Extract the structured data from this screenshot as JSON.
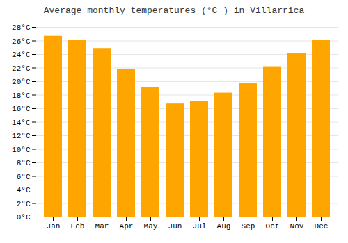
{
  "chart_data": {
    "type": "bar",
    "title": "Average monthly temperatures (°C ) in Villarrica",
    "categories": [
      "Jan",
      "Feb",
      "Mar",
      "Apr",
      "May",
      "Jun",
      "Jul",
      "Aug",
      "Sep",
      "Oct",
      "Nov",
      "Dec"
    ],
    "values": [
      26.7,
      26.1,
      24.9,
      21.8,
      19.1,
      16.7,
      17.1,
      18.3,
      19.7,
      22.2,
      24.1,
      26.1
    ],
    "color": "#FFA500",
    "ylim": [
      0,
      28
    ],
    "yticks": [
      {
        "value": 0,
        "label": "0°C"
      },
      {
        "value": 2,
        "label": "2°C"
      },
      {
        "value": 4,
        "label": "4°C"
      },
      {
        "value": 6,
        "label": "6°C"
      },
      {
        "value": 8,
        "label": "8°C"
      },
      {
        "value": 10,
        "label": "10°C"
      },
      {
        "value": 12,
        "label": "12°C"
      },
      {
        "value": 14,
        "label": "14°C"
      },
      {
        "value": 16,
        "label": "16°C"
      },
      {
        "value": 18,
        "label": "18°C"
      },
      {
        "value": 20,
        "label": "20°C"
      },
      {
        "value": 22,
        "label": "22°C"
      },
      {
        "value": 24,
        "label": "24°C"
      },
      {
        "value": 26,
        "label": "26°C"
      },
      {
        "value": 28,
        "label": "28°C"
      }
    ],
    "grid": true
  }
}
